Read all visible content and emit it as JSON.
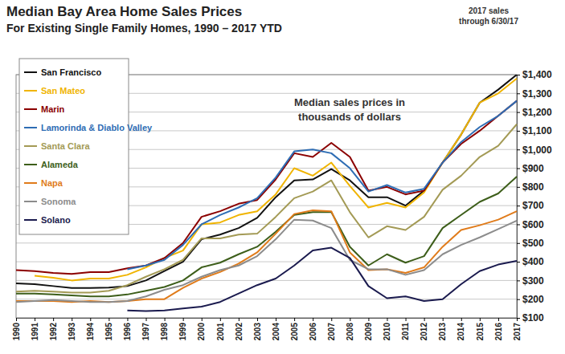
{
  "chart_data": {
    "type": "line",
    "title": "Median Bay Area Home Sales Prices",
    "subtitle": "For Existing Single Family Homes, 1990 – 2017 YTD",
    "annotations": [
      [
        "Median sales prices in",
        "thousands of dollars"
      ],
      [
        "2017 sales",
        "through 6/30/17"
      ]
    ],
    "categories": [
      "1990",
      "1991",
      "1992",
      "1993",
      "1994",
      "1995",
      "1996",
      "1997",
      "1998",
      "1999",
      "2000",
      "2001",
      "2002",
      "2003",
      "2004",
      "2005",
      "2006",
      "2007",
      "2008",
      "2009",
      "2010",
      "2011",
      "2012",
      "2013",
      "2014",
      "2015",
      "2016",
      "2017"
    ],
    "series": [
      {
        "name": "San Francisco",
        "color": "#111111",
        "values": [
          285,
          280,
          270,
          260,
          260,
          262,
          270,
          300,
          350,
          400,
          520,
          545,
          580,
          635,
          745,
          835,
          840,
          895,
          835,
          745,
          745,
          700,
          780,
          930,
          1080,
          1250,
          1320,
          1400
        ]
      },
      {
        "name": "San Mateo",
        "color": "#f0b400",
        "values": [
          null,
          325,
          315,
          300,
          310,
          310,
          330,
          370,
          420,
          460,
          600,
          610,
          650,
          670,
          760,
          900,
          860,
          930,
          805,
          690,
          715,
          690,
          770,
          930,
          1080,
          1250,
          1300,
          1380
        ]
      },
      {
        "name": "Marin",
        "color": "#8b0000",
        "values": [
          355,
          350,
          340,
          335,
          345,
          345,
          365,
          380,
          420,
          500,
          640,
          670,
          710,
          730,
          840,
          980,
          960,
          1035,
          960,
          780,
          800,
          760,
          780,
          930,
          1030,
          1100,
          1180,
          1260
        ]
      },
      {
        "name": "Lamorinda & Diablo Valley",
        "color": "#2e6db4",
        "values": [
          null,
          null,
          null,
          null,
          null,
          null,
          360,
          380,
          410,
          490,
          600,
          650,
          690,
          740,
          850,
          990,
          1000,
          980,
          900,
          775,
          810,
          770,
          790,
          930,
          1040,
          1120,
          1180,
          1260
        ]
      },
      {
        "name": "Santa Clara",
        "color": "#a39a55",
        "values": [
          240,
          245,
          240,
          235,
          235,
          245,
          275,
          320,
          360,
          410,
          525,
          525,
          545,
          550,
          640,
          740,
          775,
          835,
          665,
          530,
          590,
          570,
          640,
          785,
          860,
          960,
          1020,
          1135
        ]
      },
      {
        "name": "Alameda",
        "color": "#3d5e1a",
        "values": [
          230,
          230,
          225,
          220,
          215,
          215,
          225,
          245,
          265,
          300,
          370,
          395,
          440,
          480,
          560,
          650,
          665,
          665,
          480,
          380,
          440,
          395,
          430,
          580,
          650,
          720,
          765,
          855
        ]
      },
      {
        "name": "Napa",
        "color": "#e07b1a",
        "values": [
          190,
          190,
          190,
          185,
          190,
          185,
          190,
          200,
          200,
          260,
          310,
          345,
          390,
          450,
          550,
          655,
          675,
          670,
          450,
          355,
          360,
          340,
          370,
          480,
          570,
          595,
          625,
          670
        ]
      },
      {
        "name": "Sonoma",
        "color": "#8c8c8c",
        "values": [
          185,
          190,
          195,
          190,
          185,
          185,
          190,
          215,
          250,
          275,
          320,
          355,
          380,
          430,
          520,
          625,
          620,
          580,
          410,
          360,
          360,
          330,
          355,
          440,
          490,
          530,
          575,
          620
        ]
      },
      {
        "name": "Solano",
        "color": "#1a1a4e",
        "values": [
          null,
          null,
          null,
          null,
          null,
          null,
          140,
          137,
          140,
          150,
          160,
          185,
          230,
          275,
          310,
          380,
          460,
          475,
          420,
          270,
          205,
          215,
          190,
          200,
          280,
          350,
          385,
          405
        ]
      }
    ],
    "ylim": [
      100,
      1400
    ],
    "yticks": [
      {
        "value": 100,
        "label": "$100"
      },
      {
        "value": 200,
        "label": "$200"
      },
      {
        "value": 300,
        "label": "$300"
      },
      {
        "value": 400,
        "label": "$400"
      },
      {
        "value": 500,
        "label": "$500"
      },
      {
        "value": 600,
        "label": "$600"
      },
      {
        "value": 700,
        "label": "$700"
      },
      {
        "value": 800,
        "label": "$800"
      },
      {
        "value": 900,
        "label": "$900"
      },
      {
        "value": 1000,
        "label": "$1,000"
      },
      {
        "value": 1100,
        "label": "$1,100"
      },
      {
        "value": 1200,
        "label": "$1,200"
      },
      {
        "value": 1300,
        "label": "$1,300"
      },
      {
        "value": 1400,
        "label": "$1,400"
      }
    ],
    "grid": true,
    "legend": "upper left"
  }
}
